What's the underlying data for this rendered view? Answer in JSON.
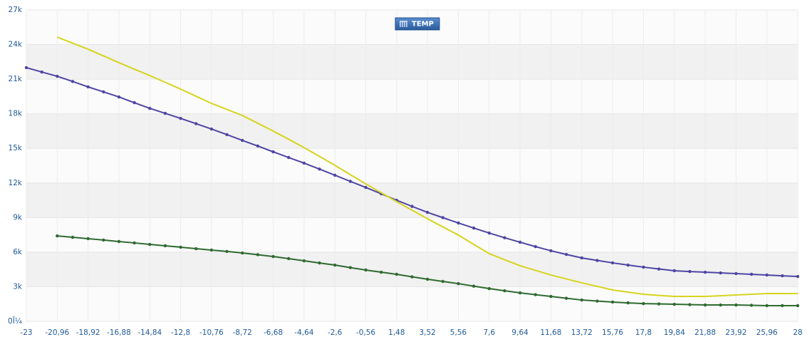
{
  "chart_data": {
    "type": "line",
    "legend_text": "TEMP",
    "x": [
      -23,
      -21.98,
      -20.96,
      -19.94,
      -18.92,
      -17.9,
      -16.88,
      -15.86,
      -14.84,
      -13.82,
      -12.8,
      -11.78,
      -10.76,
      -9.74,
      -8.72,
      -7.7,
      -6.68,
      -5.66,
      -4.64,
      -3.62,
      -2.6,
      -1.58,
      -0.56,
      0.46,
      1.48,
      2.5,
      3.52,
      4.54,
      5.56,
      6.58,
      7.6,
      8.62,
      9.64,
      10.66,
      11.68,
      12.7,
      13.72,
      14.74,
      15.76,
      16.78,
      17.8,
      18.82,
      19.84,
      20.86,
      21.88,
      22.9,
      23.92,
      24.94,
      25.96,
      26.98,
      28
    ],
    "series": [
      {
        "color": "#4f45a3",
        "markers": true,
        "values": [
          22000,
          21620,
          21250,
          20800,
          20330,
          19900,
          19460,
          18960,
          18470,
          18040,
          17600,
          17140,
          16680,
          16190,
          15690,
          15200,
          14700,
          14210,
          13720,
          13200,
          12670,
          12140,
          11610,
          11060,
          10500,
          9970,
          9450,
          8990,
          8530,
          8090,
          7660,
          7250,
          6860,
          6480,
          6120,
          5800,
          5500,
          5280,
          5070,
          4880,
          4700,
          4540,
          4390,
          4320,
          4260,
          4200,
          4140,
          4080,
          4020,
          3950,
          3890
        ]
      },
      {
        "color": "#2f6a30",
        "markers": true,
        "values": [
          null,
          null,
          7410,
          7290,
          7170,
          7050,
          6920,
          6800,
          6670,
          6550,
          6430,
          6300,
          6180,
          6060,
          5930,
          5780,
          5620,
          5440,
          5250,
          5060,
          4880,
          4660,
          4450,
          4260,
          4080,
          3860,
          3650,
          3460,
          3270,
          3050,
          2840,
          2650,
          2470,
          2310,
          2160,
          2000,
          1850,
          1760,
          1670,
          1600,
          1540,
          1510,
          1480,
          1450,
          1420,
          1420,
          1420,
          1390,
          1360,
          1360,
          1360
        ]
      },
      {
        "color": "#d6d41e",
        "markers": false,
        "values": [
          null,
          null,
          24650,
          24120,
          23600,
          23020,
          22430,
          21870,
          21310,
          20730,
          20140,
          19520,
          18900,
          18380,
          17850,
          17180,
          16500,
          15790,
          15070,
          14300,
          13530,
          12720,
          11920,
          11150,
          10380,
          9640,
          8900,
          8190,
          7480,
          6670,
          5870,
          5340,
          4820,
          4420,
          4020,
          3680,
          3340,
          3030,
          2720,
          2530,
          2350,
          2250,
          2160,
          2160,
          2160,
          2220,
          2290,
          2350,
          2410,
          2410,
          2410
        ]
      }
    ],
    "xlim": [
      -23,
      28
    ],
    "xticks": [
      -23,
      {
        "value": -20.96,
        "label": "-20,96"
      },
      {
        "value": -18.92,
        "label": "-18,92"
      },
      {
        "value": -16.88,
        "label": "-16,88"
      },
      {
        "value": -14.84,
        "label": "-14,84"
      },
      {
        "value": -12.8,
        "label": "-12,8"
      },
      {
        "value": -10.76,
        "label": "-10,76"
      },
      {
        "value": -8.72,
        "label": "-8,72"
      },
      {
        "value": -6.68,
        "label": "-6,68"
      },
      {
        "value": -4.64,
        "label": "-4,64"
      },
      {
        "value": -2.6,
        "label": "-2,6"
      },
      {
        "value": -0.56,
        "label": "-0,56"
      },
      {
        "value": 1.48,
        "label": "1,48"
      },
      {
        "value": 3.52,
        "label": "3,52"
      },
      {
        "value": 5.56,
        "label": "5,56"
      },
      {
        "value": 7.6,
        "label": "7,6"
      },
      {
        "value": 9.64,
        "label": "9,64"
      },
      {
        "value": 11.68,
        "label": "11,68"
      },
      {
        "value": 13.72,
        "label": "13,72"
      },
      {
        "value": 15.76,
        "label": "15,76"
      },
      {
        "value": 17.8,
        "label": "17,8"
      },
      {
        "value": 19.84,
        "label": "19,84"
      },
      {
        "value": 21.88,
        "label": "21,88"
      },
      {
        "value": 23.92,
        "label": "23,92"
      },
      {
        "value": 25.96,
        "label": "25,96"
      },
      28
    ],
    "ylim": [
      0,
      27000
    ],
    "yticks": [
      {
        "value": 0,
        "label": "0Î¼"
      },
      {
        "value": 3000,
        "label": "3k"
      },
      {
        "value": 6000,
        "label": "6k"
      },
      {
        "value": 9000,
        "label": "9k"
      },
      {
        "value": 12000,
        "label": "12k"
      },
      {
        "value": 15000,
        "label": "15k"
      },
      {
        "value": 18000,
        "label": "18k"
      },
      {
        "value": 21000,
        "label": "21k"
      },
      {
        "value": 24000,
        "label": "24k"
      },
      {
        "value": 27000,
        "label": "27k"
      }
    ],
    "grid": true
  }
}
